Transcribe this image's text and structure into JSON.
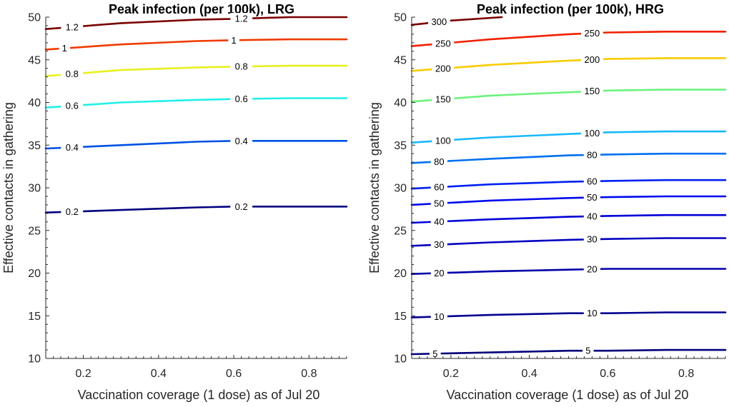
{
  "chart_data": [
    {
      "type": "contour",
      "title": "Peak infection (per 100k), LRG",
      "xlabel": "Vaccination coverage (1 dose) as of Jul 20",
      "ylabel": "Effective contacts in gathering",
      "xlim": [
        0.1,
        0.9
      ],
      "ylim": [
        10,
        50
      ],
      "xticks": [
        0.2,
        0.4,
        0.6,
        0.8
      ],
      "yticks": [
        10,
        15,
        20,
        25,
        30,
        35,
        40,
        45,
        50
      ],
      "contours": [
        {
          "level": "0.2",
          "color": "#000080",
          "x": [
            0.1,
            0.3,
            0.5,
            0.6,
            0.75,
            0.9
          ],
          "y": [
            27.1,
            27.4,
            27.7,
            27.8,
            27.8,
            27.8
          ],
          "label_x": [
            0.17,
            0.62
          ]
        },
        {
          "level": "0.4",
          "color": "#0050e6",
          "x": [
            0.1,
            0.3,
            0.5,
            0.6,
            0.75,
            0.9
          ],
          "y": [
            34.6,
            35.0,
            35.4,
            35.5,
            35.5,
            35.5
          ],
          "label_x": [
            0.17,
            0.62
          ]
        },
        {
          "level": "0.6",
          "color": "#20f0e8",
          "x": [
            0.1,
            0.3,
            0.5,
            0.6,
            0.75,
            0.9
          ],
          "y": [
            39.4,
            40.0,
            40.3,
            40.4,
            40.5,
            40.5
          ],
          "label_x": [
            0.17,
            0.62
          ]
        },
        {
          "level": "0.8",
          "color": "#e8f01c",
          "x": [
            0.1,
            0.3,
            0.5,
            0.6,
            0.75,
            0.9
          ],
          "y": [
            43.1,
            43.8,
            44.1,
            44.2,
            44.3,
            44.3
          ],
          "label_x": [
            0.17,
            0.62
          ]
        },
        {
          "level": "1",
          "color": "#f03a00",
          "x": [
            0.1,
            0.3,
            0.5,
            0.6,
            0.75,
            0.9
          ],
          "y": [
            46.2,
            46.8,
            47.2,
            47.3,
            47.4,
            47.4
          ],
          "label_x": [
            0.15,
            0.6
          ]
        },
        {
          "level": "1.2",
          "color": "#7a0000",
          "x": [
            0.1,
            0.3,
            0.5,
            0.6,
            0.75,
            0.9
          ],
          "y": [
            48.6,
            49.3,
            49.7,
            49.8,
            50.0,
            50.0
          ],
          "label_x": [
            0.17,
            0.62
          ]
        }
      ]
    },
    {
      "type": "contour",
      "title": "Peak infection (per 100k), HRG",
      "xlabel": "Vaccination coverage (1 dose) as of Jul 20",
      "ylabel": "Effective contacts in gathering",
      "xlim": [
        0.1,
        0.9
      ],
      "ylim": [
        10,
        50
      ],
      "xticks": [
        0.2,
        0.4,
        0.6,
        0.8
      ],
      "yticks": [
        10,
        15,
        20,
        25,
        30,
        35,
        40,
        45,
        50
      ],
      "contours": [
        {
          "level": "5",
          "color": "#00007a",
          "x": [
            0.1,
            0.3,
            0.5,
            0.6,
            0.75,
            0.9
          ],
          "y": [
            10.5,
            10.7,
            10.9,
            10.9,
            11.0,
            11.0
          ],
          "label_x": [
            0.16,
            0.55
          ]
        },
        {
          "level": "10",
          "color": "#000090",
          "x": [
            0.1,
            0.3,
            0.5,
            0.6,
            0.75,
            0.9
          ],
          "y": [
            14.8,
            15.1,
            15.3,
            15.3,
            15.4,
            15.4
          ],
          "label_x": [
            0.17,
            0.56
          ]
        },
        {
          "level": "20",
          "color": "#0000a8",
          "x": [
            0.1,
            0.3,
            0.5,
            0.6,
            0.75,
            0.9
          ],
          "y": [
            19.9,
            20.2,
            20.4,
            20.5,
            20.5,
            20.5
          ],
          "label_x": [
            0.17,
            0.56
          ]
        },
        {
          "level": "30",
          "color": "#0000c0",
          "x": [
            0.1,
            0.3,
            0.5,
            0.6,
            0.75,
            0.9
          ],
          "y": [
            23.2,
            23.6,
            23.9,
            24.0,
            24.1,
            24.1
          ],
          "label_x": [
            0.17,
            0.56
          ]
        },
        {
          "level": "40",
          "color": "#0000d8",
          "x": [
            0.1,
            0.3,
            0.5,
            0.6,
            0.75,
            0.9
          ],
          "y": [
            25.9,
            26.3,
            26.6,
            26.7,
            26.8,
            26.8
          ],
          "label_x": [
            0.17,
            0.56
          ]
        },
        {
          "level": "50",
          "color": "#0008ee",
          "x": [
            0.1,
            0.3,
            0.5,
            0.6,
            0.75,
            0.9
          ],
          "y": [
            28.0,
            28.5,
            28.8,
            28.9,
            29.0,
            29.0
          ],
          "label_x": [
            0.17,
            0.56
          ]
        },
        {
          "level": "60",
          "color": "#0020f4",
          "x": [
            0.1,
            0.3,
            0.5,
            0.6,
            0.75,
            0.9
          ],
          "y": [
            29.9,
            30.4,
            30.7,
            30.8,
            30.9,
            30.9
          ],
          "label_x": [
            0.17,
            0.56
          ]
        },
        {
          "level": "80",
          "color": "#0070f0",
          "x": [
            0.1,
            0.3,
            0.5,
            0.6,
            0.75,
            0.9
          ],
          "y": [
            32.9,
            33.4,
            33.8,
            33.9,
            34.0,
            34.0
          ],
          "label_x": [
            0.17,
            0.56
          ]
        },
        {
          "level": "100",
          "color": "#18b8ff",
          "x": [
            0.1,
            0.3,
            0.5,
            0.6,
            0.75,
            0.9
          ],
          "y": [
            35.3,
            35.9,
            36.3,
            36.5,
            36.6,
            36.6
          ],
          "label_x": [
            0.18,
            0.56
          ]
        },
        {
          "level": "150",
          "color": "#6cf27e",
          "x": [
            0.1,
            0.3,
            0.5,
            0.6,
            0.75,
            0.9
          ],
          "y": [
            40.1,
            40.8,
            41.2,
            41.4,
            41.5,
            41.5
          ],
          "label_x": [
            0.18,
            0.56
          ]
        },
        {
          "level": "200",
          "color": "#f8cc00",
          "x": [
            0.1,
            0.3,
            0.5,
            0.6,
            0.75,
            0.9
          ],
          "y": [
            43.7,
            44.4,
            44.9,
            45.1,
            45.2,
            45.2
          ],
          "label_x": [
            0.18,
            0.56
          ]
        },
        {
          "level": "250",
          "color": "#f02000",
          "x": [
            0.1,
            0.3,
            0.5,
            0.6,
            0.75,
            0.9
          ],
          "y": [
            46.6,
            47.4,
            48.0,
            48.2,
            48.3,
            48.3
          ],
          "label_x": [
            0.18,
            0.56
          ]
        },
        {
          "level": "300",
          "color": "#7a0000",
          "x": [
            0.1,
            0.2,
            0.33
          ],
          "y": [
            49.1,
            49.6,
            50.0
          ],
          "label_x": [
            0.17
          ]
        }
      ]
    }
  ]
}
